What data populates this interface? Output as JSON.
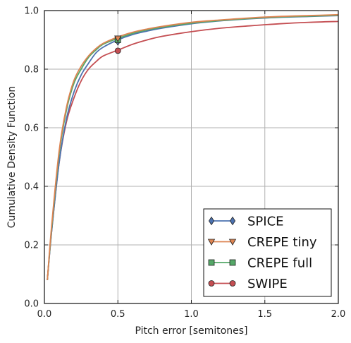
{
  "chart_data": {
    "type": "line",
    "xlabel": "Pitch error [semitones]",
    "ylabel": "Cumulative Density Function",
    "xlim": [
      0.0,
      2.0
    ],
    "ylim": [
      0.0,
      1.0
    ],
    "xticks": [
      "0.0",
      "0.5",
      "1.0",
      "1.5",
      "2.0"
    ],
    "yticks": [
      "0.0",
      "0.2",
      "0.4",
      "0.6",
      "0.8",
      "1.0"
    ],
    "grid": true,
    "legend_position": "bottom-right",
    "x": [
      0.02,
      0.05,
      0.1,
      0.15,
      0.2,
      0.25,
      0.3,
      0.35,
      0.4,
      0.5,
      0.6,
      0.7,
      0.8,
      1.0,
      1.2,
      1.4,
      1.6,
      1.8,
      2.0
    ],
    "series": [
      {
        "name": "SPICE",
        "color": "#4c72b0",
        "marker": "diamond",
        "values": [
          0.08,
          0.25,
          0.48,
          0.63,
          0.72,
          0.78,
          0.82,
          0.855,
          0.875,
          0.9,
          0.918,
          0.93,
          0.94,
          0.955,
          0.965,
          0.972,
          0.977,
          0.98,
          0.983
        ],
        "marker_point": [
          0.5,
          0.895
        ]
      },
      {
        "name": "CREPE tiny",
        "color": "#dd8452",
        "marker": "triangle-down",
        "values": [
          0.08,
          0.27,
          0.52,
          0.67,
          0.76,
          0.81,
          0.845,
          0.87,
          0.888,
          0.91,
          0.926,
          0.937,
          0.946,
          0.96,
          0.968,
          0.975,
          0.98,
          0.983,
          0.986
        ],
        "marker_point": [
          0.5,
          0.905
        ]
      },
      {
        "name": "CREPE full",
        "color": "#55a868",
        "marker": "square",
        "values": [
          0.08,
          0.26,
          0.51,
          0.66,
          0.75,
          0.8,
          0.84,
          0.865,
          0.885,
          0.905,
          0.922,
          0.934,
          0.943,
          0.957,
          0.966,
          0.973,
          0.978,
          0.981,
          0.984
        ],
        "marker_point": [
          0.5,
          0.9
        ]
      },
      {
        "name": "SWIPE",
        "color": "#c44e52",
        "marker": "circle",
        "values": [
          0.08,
          0.25,
          0.48,
          0.62,
          0.7,
          0.76,
          0.8,
          0.825,
          0.845,
          0.865,
          0.885,
          0.9,
          0.912,
          0.928,
          0.94,
          0.948,
          0.955,
          0.96,
          0.963
        ],
        "marker_point": [
          0.5,
          0.863
        ]
      }
    ]
  }
}
